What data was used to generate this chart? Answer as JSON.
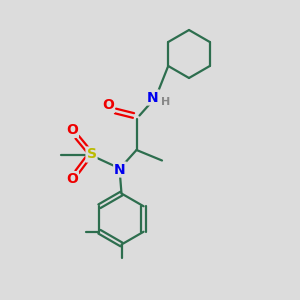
{
  "bg_color": "#dcdcdc",
  "bond_color": "#2d6e4e",
  "bond_width": 1.6,
  "atom_colors": {
    "N": "#0000ee",
    "O": "#ee0000",
    "S": "#bbbb00",
    "H": "#888888",
    "C": "#2d6e4e"
  }
}
